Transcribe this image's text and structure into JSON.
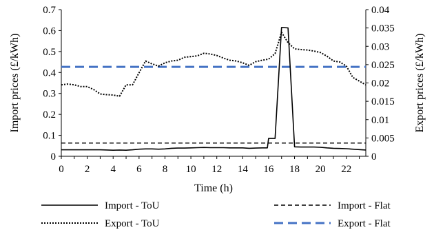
{
  "chart_data": {
    "type": "line",
    "title": "",
    "xlabel": "Time (h)",
    "ylabel": "Import prices (£/kWh)",
    "y2label": "Export prices (£/kWh)",
    "xlim": [
      0,
      23.5
    ],
    "ylim": [
      0,
      0.7
    ],
    "y2lim": [
      0,
      0.04
    ],
    "x_ticks": [
      0,
      2,
      4,
      6,
      8,
      10,
      12,
      14,
      16,
      18,
      20,
      22
    ],
    "x_tick_labels": [
      "0",
      "2",
      "4",
      "6",
      "8",
      "10",
      "12",
      "14",
      "16",
      "18",
      "20",
      "22"
    ],
    "y_ticks": [
      0,
      0.1,
      0.2,
      0.3,
      0.4,
      0.5,
      0.6,
      0.7
    ],
    "y_tick_labels": [
      "0",
      "0.1",
      "0.2",
      "0.3",
      "0.4",
      "0.5",
      "0.6",
      "0.7"
    ],
    "y2_ticks": [
      0,
      0.005,
      0.01,
      0.015,
      0.02,
      0.025,
      0.03,
      0.035,
      0.04
    ],
    "y2_tick_labels": [
      "0",
      "0.005",
      "0.01",
      "0.015",
      "0.02",
      "0.025",
      "0.03",
      "0.035",
      "0.04"
    ],
    "grid": false,
    "legend_position": "bottom",
    "series": [
      {
        "name": "Import - ToU",
        "axis": "left",
        "style": "solid",
        "color": "#000000",
        "x": [
          0,
          1,
          2,
          3,
          4,
          4.5,
          5,
          5.5,
          6,
          6.5,
          7,
          7.5,
          8,
          8.5,
          9,
          9.5,
          10,
          10.5,
          11,
          11.5,
          12,
          12.5,
          13,
          13.5,
          14,
          14.5,
          15,
          15.5,
          15.9,
          16,
          16.5,
          17,
          17.5,
          18,
          18.5,
          19,
          19.5,
          20,
          20.5,
          21,
          21.5,
          22,
          22.5,
          23,
          23.5
        ],
        "y": [
          0.031,
          0.031,
          0.031,
          0.031,
          0.029,
          0.03,
          0.029,
          0.031,
          0.034,
          0.035,
          0.035,
          0.034,
          0.035,
          0.038,
          0.039,
          0.039,
          0.04,
          0.041,
          0.042,
          0.041,
          0.041,
          0.041,
          0.04,
          0.04,
          0.04,
          0.038,
          0.039,
          0.04,
          0.04,
          0.085,
          0.085,
          0.615,
          0.613,
          0.045,
          0.044,
          0.044,
          0.044,
          0.043,
          0.04,
          0.038,
          0.037,
          0.036,
          0.034,
          0.032,
          0.03
        ]
      },
      {
        "name": "Import - Flat",
        "axis": "left",
        "style": "dashed",
        "color": "#000000",
        "x": [
          0,
          23.5
        ],
        "y": [
          0.063,
          0.063
        ]
      },
      {
        "name": "Export - ToU",
        "axis": "right",
        "style": "dotted",
        "color": "#000000",
        "x": [
          0,
          0.5,
          1,
          1.5,
          2,
          2.5,
          3,
          3.5,
          4,
          4.5,
          5,
          5.5,
          6,
          6.5,
          7,
          7.5,
          8,
          8.5,
          9,
          9.5,
          10,
          10.5,
          11,
          11.5,
          12,
          12.5,
          13,
          13.5,
          14,
          14.5,
          15,
          15.5,
          16,
          16.5,
          17,
          17.5,
          18,
          18.5,
          19,
          19.5,
          20,
          20.5,
          21,
          21.5,
          22,
          22.5,
          23,
          23.5
        ],
        "y": [
          0.0195,
          0.0197,
          0.0195,
          0.019,
          0.019,
          0.0182,
          0.017,
          0.0168,
          0.0167,
          0.0164,
          0.0195,
          0.0195,
          0.0228,
          0.026,
          0.0252,
          0.0246,
          0.0255,
          0.026,
          0.0262,
          0.027,
          0.0272,
          0.0274,
          0.0281,
          0.0279,
          0.0275,
          0.0268,
          0.0262,
          0.026,
          0.0255,
          0.0248,
          0.0258,
          0.0262,
          0.0265,
          0.028,
          0.0338,
          0.031,
          0.0293,
          0.0291,
          0.029,
          0.0287,
          0.0283,
          0.0273,
          0.026,
          0.0257,
          0.0246,
          0.0215,
          0.0205,
          0.0195
        ]
      },
      {
        "name": "Export - Flat",
        "axis": "right",
        "style": "dashed",
        "color": "#4472C4",
        "x": [
          0,
          23.5
        ],
        "y": [
          0.0244,
          0.0244
        ]
      }
    ]
  }
}
